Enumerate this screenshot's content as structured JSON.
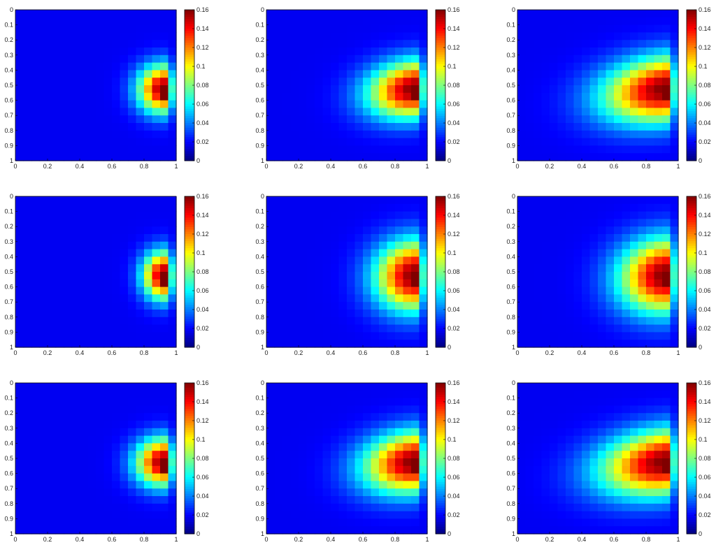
{
  "chart_data": {
    "type": "heatmap",
    "layout": "3x3 grid of heatmap panels, each with its own vertical colorbar on the right",
    "axes": {
      "x": {
        "range": [
          0,
          1
        ],
        "ticks": [
          "0",
          "0.2",
          "0.4",
          "0.6",
          "0.8",
          "1"
        ]
      },
      "y": {
        "range": [
          0,
          1
        ],
        "direction": "top-to-bottom",
        "ticks": [
          "0",
          "0.1",
          "0.2",
          "0.3",
          "0.4",
          "0.5",
          "0.6",
          "0.7",
          "0.8",
          "0.9",
          "1"
        ]
      }
    },
    "colorbar": {
      "colormap": "jet",
      "range": [
        0,
        0.16
      ],
      "ticks": [
        "0",
        "0.02",
        "0.04",
        "0.06",
        "0.08",
        "0.1",
        "0.12",
        "0.14",
        "0.16"
      ]
    },
    "grid_resolution": [
      20,
      20
    ],
    "peak_location": {
      "x": 0.925,
      "y": 0.525
    },
    "panels": [
      {
        "row": 1,
        "col": 1,
        "peak": 0.16,
        "spread_x": 0.11,
        "spread_y": 0.11,
        "tail_slope": 0.05
      },
      {
        "row": 1,
        "col": 2,
        "peak": 0.16,
        "spread_x": 0.2,
        "spread_y": 0.13,
        "tail_slope": 0.3
      },
      {
        "row": 1,
        "col": 3,
        "peak": 0.16,
        "spread_x": 0.27,
        "spread_y": 0.15,
        "tail_slope": 0.36
      },
      {
        "row": 2,
        "col": 1,
        "peak": 0.16,
        "spread_x": 0.09,
        "spread_y": 0.11,
        "tail_slope": 0.0
      },
      {
        "row": 2,
        "col": 2,
        "peak": 0.16,
        "spread_x": 0.17,
        "spread_y": 0.16,
        "tail_slope": 0.12
      },
      {
        "row": 2,
        "col": 3,
        "peak": 0.16,
        "spread_x": 0.2,
        "spread_y": 0.17,
        "tail_slope": 0.18
      },
      {
        "row": 3,
        "col": 1,
        "peak": 0.16,
        "spread_x": 0.12,
        "spread_y": 0.11,
        "tail_slope": 0.08
      },
      {
        "row": 3,
        "col": 2,
        "peak": 0.16,
        "spread_x": 0.22,
        "spread_y": 0.14,
        "tail_slope": 0.3
      },
      {
        "row": 3,
        "col": 3,
        "peak": 0.16,
        "spread_x": 0.28,
        "spread_y": 0.15,
        "tail_slope": 0.36
      }
    ]
  }
}
